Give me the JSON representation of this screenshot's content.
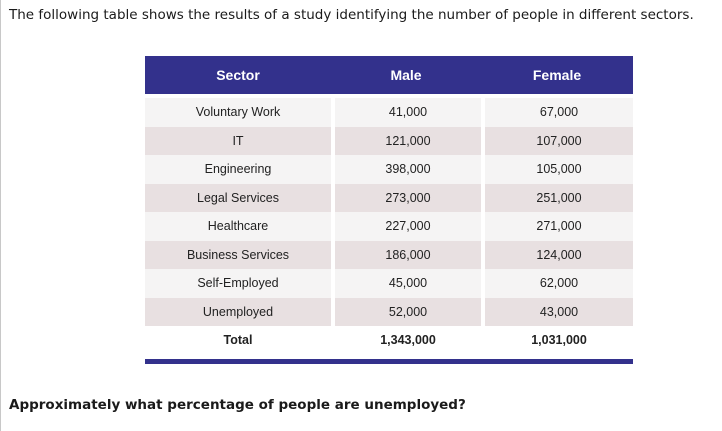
{
  "intro_text": "The following table shows the results of a study identifying the number of people in different sectors.",
  "question_text": "Approximately what percentage of people are unemployed?",
  "table": {
    "headers": [
      "Sector",
      "Male",
      "Female"
    ],
    "rows": [
      [
        "Voluntary Work",
        "41,000",
        "67,000"
      ],
      [
        "IT",
        "121,000",
        "107,000"
      ],
      [
        "Engineering",
        "398,000",
        "105,000"
      ],
      [
        "Legal Services",
        "273,000",
        "251,000"
      ],
      [
        "Healthcare",
        "227,000",
        "271,000"
      ],
      [
        "Business Services",
        "186,000",
        "124,000"
      ],
      [
        "Self-Employed",
        "45,000",
        "62,000"
      ],
      [
        "Unemployed",
        "52,000",
        "43,000"
      ]
    ],
    "total": [
      "Total",
      "1,343,000",
      "1,031,000"
    ]
  },
  "colors": {
    "header_bg": "#33318c",
    "row_light": "#f5f4f4",
    "row_dark": "#e8e0e1"
  }
}
